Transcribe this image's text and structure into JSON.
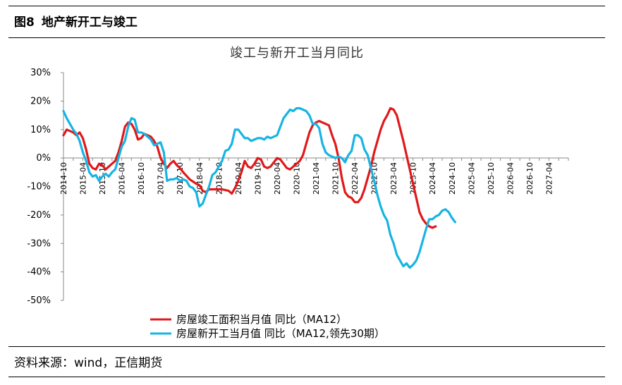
{
  "header": {
    "fig_no": "图8",
    "fig_title": "地产新开工与竣工"
  },
  "source": "资料来源：wind，正信期货",
  "chart_data": {
    "type": "line",
    "title": "竣工与新开工当月同比",
    "xlabel": "",
    "ylabel": "",
    "ylim": [
      -50,
      30
    ],
    "yticks": [
      -50,
      -40,
      -30,
      -20,
      -10,
      0,
      10,
      20,
      30
    ],
    "ytick_labels": [
      "-50%",
      "-40%",
      "-30%",
      "-20%",
      "-10%",
      "0%",
      "10%",
      "20%",
      "30%"
    ],
    "xlim": [
      "2014-10",
      "2027-10"
    ],
    "xticks": [
      "2014-10",
      "2015-04",
      "2015-10",
      "2016-04",
      "2016-10",
      "2017-04",
      "2017-10",
      "2018-04",
      "2018-10",
      "2019-04",
      "2019-10",
      "2020-04",
      "2020-10",
      "2021-04",
      "2021-10",
      "2022-04",
      "2022-10",
      "2023-04",
      "2023-10",
      "2024-04",
      "2024-10",
      "2025-04",
      "2025-10",
      "2026-04",
      "2026-10",
      "2027-04"
    ],
    "legend_position": "bottom-left",
    "grid": false,
    "series": [
      {
        "name": "房屋竣工面积当月值  同比（MA12）",
        "color": "#e0191b",
        "points": [
          [
            "2014-10",
            8
          ],
          [
            "2014-11",
            10
          ],
          [
            "2015-01",
            9
          ],
          [
            "2015-02",
            8
          ],
          [
            "2015-03",
            9
          ],
          [
            "2015-04",
            7
          ],
          [
            "2015-05",
            3
          ],
          [
            "2015-06",
            -2
          ],
          [
            "2015-07",
            -3.5
          ],
          [
            "2015-08",
            -4
          ],
          [
            "2015-09",
            -2
          ],
          [
            "2015-10",
            -2.5
          ],
          [
            "2015-11",
            -4
          ],
          [
            "2015-12",
            -3
          ],
          [
            "2016-02",
            -1
          ],
          [
            "2016-03",
            2
          ],
          [
            "2016-04",
            6
          ],
          [
            "2016-05",
            11
          ],
          [
            "2016-06",
            12.5
          ],
          [
            "2016-07",
            12
          ],
          [
            "2016-08",
            10
          ],
          [
            "2016-09",
            6.5
          ],
          [
            "2016-10",
            7
          ],
          [
            "2016-11",
            8.5
          ],
          [
            "2017-01",
            7.5
          ],
          [
            "2017-02",
            6
          ],
          [
            "2017-03",
            4
          ],
          [
            "2017-04",
            0
          ],
          [
            "2017-05",
            -2
          ],
          [
            "2017-06",
            -3.5
          ],
          [
            "2017-07",
            -2
          ],
          [
            "2017-08",
            -1
          ],
          [
            "2017-09",
            -2.5
          ],
          [
            "2017-10",
            -3.5
          ],
          [
            "2017-11",
            -5
          ],
          [
            "2018-01",
            -7.5
          ],
          [
            "2018-03",
            -9
          ],
          [
            "2018-04",
            -9.5
          ],
          [
            "2018-05",
            -11.5
          ],
          [
            "2018-06",
            -12
          ],
          [
            "2018-07",
            -11
          ],
          [
            "2018-08",
            -11
          ],
          [
            "2018-09",
            -11
          ],
          [
            "2018-11",
            -11
          ],
          [
            "2019-01",
            -11.5
          ],
          [
            "2019-02",
            -12.5
          ],
          [
            "2019-03",
            -10.5
          ],
          [
            "2019-04",
            -8
          ],
          [
            "2019-05",
            -5
          ],
          [
            "2019-06",
            -1
          ],
          [
            "2019-07",
            -3
          ],
          [
            "2019-08",
            -3.5
          ],
          [
            "2019-09",
            -2
          ],
          [
            "2019-10",
            0
          ],
          [
            "2019-11",
            -0.5
          ],
          [
            "2019-12",
            -3
          ],
          [
            "2020-01",
            -3.5
          ],
          [
            "2020-02",
            -3
          ],
          [
            "2020-03",
            -1.5
          ],
          [
            "2020-04",
            0
          ],
          [
            "2020-05",
            -0.5
          ],
          [
            "2020-06",
            -2
          ],
          [
            "2020-07",
            -3.5
          ],
          [
            "2020-08",
            -4
          ],
          [
            "2020-09",
            -3
          ],
          [
            "2020-10",
            -2
          ],
          [
            "2020-11",
            -1
          ],
          [
            "2020-12",
            1
          ],
          [
            "2021-01",
            5
          ],
          [
            "2021-02",
            9
          ],
          [
            "2021-03",
            11.5
          ],
          [
            "2021-04",
            12.5
          ],
          [
            "2021-05",
            13
          ],
          [
            "2021-06",
            12.5
          ],
          [
            "2021-07",
            12
          ],
          [
            "2021-08",
            11.5
          ],
          [
            "2021-09",
            8
          ],
          [
            "2021-10",
            5
          ],
          [
            "2021-11",
            0
          ],
          [
            "2021-12",
            -7
          ],
          [
            "2022-01",
            -12
          ],
          [
            "2022-02",
            -13.5
          ],
          [
            "2022-03",
            -14
          ],
          [
            "2022-04",
            -15.5
          ],
          [
            "2022-05",
            -15.5
          ],
          [
            "2022-06",
            -14
          ],
          [
            "2022-07",
            -11
          ],
          [
            "2022-08",
            -7
          ],
          [
            "2022-09",
            -3
          ],
          [
            "2022-10",
            2
          ],
          [
            "2022-11",
            6
          ],
          [
            "2022-12",
            10
          ],
          [
            "2023-01",
            13
          ],
          [
            "2023-02",
            15
          ],
          [
            "2023-03",
            17.5
          ],
          [
            "2023-04",
            17
          ],
          [
            "2023-05",
            15
          ],
          [
            "2023-06",
            10.5
          ],
          [
            "2023-07",
            6
          ],
          [
            "2023-08",
            1
          ],
          [
            "2023-09",
            -4
          ],
          [
            "2023-10",
            -9
          ],
          [
            "2023-11",
            -14
          ],
          [
            "2023-12",
            -19
          ],
          [
            "2024-01",
            -21.5
          ],
          [
            "2024-02",
            -23
          ],
          [
            "2024-03",
            -24
          ],
          [
            "2024-04",
            -24.5
          ],
          [
            "2024-05",
            -24
          ]
        ]
      },
      {
        "name": "房屋新开工当月值  同比（MA12,领先30期）",
        "color": "#17b4e3",
        "points": [
          [
            "2014-10",
            16.5
          ],
          [
            "2014-11",
            14
          ],
          [
            "2015-01",
            10
          ],
          [
            "2015-02",
            8.5
          ],
          [
            "2015-03",
            6
          ],
          [
            "2015-04",
            2
          ],
          [
            "2015-05",
            -1
          ],
          [
            "2015-06",
            -5
          ],
          [
            "2015-07",
            -6.5
          ],
          [
            "2015-08",
            -6
          ],
          [
            "2015-09",
            -8
          ],
          [
            "2015-10",
            -6.5
          ],
          [
            "2015-11",
            -5.5
          ],
          [
            "2015-12",
            -6.5
          ],
          [
            "2016-01",
            -5
          ],
          [
            "2016-02",
            -4
          ],
          [
            "2016-03",
            0
          ],
          [
            "2016-04",
            4
          ],
          [
            "2016-05",
            6
          ],
          [
            "2016-06",
            11
          ],
          [
            "2016-07",
            14
          ],
          [
            "2016-08",
            13.5
          ],
          [
            "2016-09",
            9
          ],
          [
            "2016-10",
            9
          ],
          [
            "2016-11",
            8.5
          ],
          [
            "2017-01",
            6.5
          ],
          [
            "2017-02",
            4.5
          ],
          [
            "2017-03",
            5
          ],
          [
            "2017-04",
            5.5
          ],
          [
            "2017-05",
            2
          ],
          [
            "2017-06",
            -8
          ],
          [
            "2017-07",
            -7.5
          ],
          [
            "2017-08",
            -7.5
          ],
          [
            "2017-09",
            -7
          ],
          [
            "2017-10",
            -8
          ],
          [
            "2017-11",
            -7.5
          ],
          [
            "2017-12",
            -8
          ],
          [
            "2018-01",
            -10
          ],
          [
            "2018-02",
            -10.5
          ],
          [
            "2018-03",
            -12
          ],
          [
            "2018-04",
            -17
          ],
          [
            "2018-05",
            -16
          ],
          [
            "2018-06",
            -13
          ],
          [
            "2018-07",
            -10
          ],
          [
            "2018-08",
            -6
          ],
          [
            "2018-09",
            -5
          ],
          [
            "2018-10",
            -3
          ],
          [
            "2018-11",
            -1
          ],
          [
            "2018-12",
            2.5
          ],
          [
            "2019-01",
            3
          ],
          [
            "2019-02",
            5
          ],
          [
            "2019-03",
            10
          ],
          [
            "2019-04",
            10
          ],
          [
            "2019-05",
            8.5
          ],
          [
            "2019-06",
            7
          ],
          [
            "2019-07",
            7
          ],
          [
            "2019-08",
            6
          ],
          [
            "2019-09",
            6.5
          ],
          [
            "2019-10",
            7
          ],
          [
            "2019-11",
            7
          ],
          [
            "2019-12",
            6.5
          ],
          [
            "2020-01",
            7.5
          ],
          [
            "2020-02",
            7
          ],
          [
            "2020-03",
            7.5
          ],
          [
            "2020-04",
            8
          ],
          [
            "2020-05",
            11
          ],
          [
            "2020-06",
            14
          ],
          [
            "2020-07",
            15.5
          ],
          [
            "2020-08",
            17
          ],
          [
            "2020-09",
            16.5
          ],
          [
            "2020-10",
            17.5
          ],
          [
            "2020-11",
            17.5
          ],
          [
            "2020-12",
            17
          ],
          [
            "2021-01",
            16.5
          ],
          [
            "2021-02",
            15
          ],
          [
            "2021-03",
            12
          ],
          [
            "2021-04",
            12
          ],
          [
            "2021-05",
            10.5
          ],
          [
            "2021-06",
            5
          ],
          [
            "2021-07",
            2
          ],
          [
            "2021-08",
            1
          ],
          [
            "2021-09",
            0.5
          ],
          [
            "2021-10",
            0
          ],
          [
            "2021-11",
            0.5
          ],
          [
            "2021-12",
            0
          ],
          [
            "2022-01",
            -1.5
          ],
          [
            "2022-02",
            1
          ],
          [
            "2022-03",
            2.5
          ],
          [
            "2022-04",
            8
          ],
          [
            "2022-05",
            8
          ],
          [
            "2022-06",
            7
          ],
          [
            "2022-07",
            3
          ],
          [
            "2022-08",
            1
          ],
          [
            "2022-09",
            -3.5
          ],
          [
            "2022-10",
            -8
          ],
          [
            "2022-11",
            -13
          ],
          [
            "2022-12",
            -17
          ],
          [
            "2023-01",
            -20
          ],
          [
            "2023-02",
            -22
          ],
          [
            "2023-03",
            -27
          ],
          [
            "2023-04",
            -30
          ],
          [
            "2023-05",
            -34
          ],
          [
            "2023-06",
            -36
          ],
          [
            "2023-07",
            -38
          ],
          [
            "2023-08",
            -37
          ],
          [
            "2023-09",
            -38.5
          ],
          [
            "2023-10",
            -37.5
          ],
          [
            "2023-11",
            -36
          ],
          [
            "2023-12",
            -33
          ],
          [
            "2024-01",
            -29
          ],
          [
            "2024-02",
            -25
          ],
          [
            "2024-03",
            -21.5
          ],
          [
            "2024-04",
            -21.5
          ],
          [
            "2024-05",
            -20.5
          ],
          [
            "2024-06",
            -20
          ],
          [
            "2024-07",
            -18.5
          ],
          [
            "2024-08",
            -18
          ],
          [
            "2024-09",
            -19
          ],
          [
            "2024-10",
            -21
          ],
          [
            "2024-11",
            -22.5
          ]
        ]
      }
    ]
  }
}
